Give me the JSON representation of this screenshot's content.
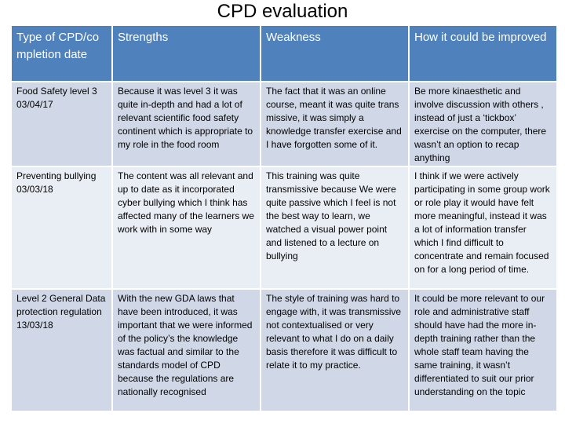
{
  "page_title": "CPD evaluation",
  "table": {
    "headers": [
      "Type of CPD/completion date",
      "Strengths",
      "Weakness",
      "How it could be improved"
    ],
    "rows": [
      [
        "Food Safety level 3 03/04/17",
        "Because it was level 3 it was quite in-depth and had a lot of relevant scientific food safety continent which is appropriate to my role in the food room",
        "The fact that it was an online course, meant it was quite trans missive, it was simply a knowledge transfer exercise and I have forgotten some of it.",
        "Be more kinaesthetic and involve discussion with others , instead of just a ‘tickbox’ exercise on the computer, there wasn’t an option to recap anything"
      ],
      [
        "Preventing bullying 03/03/18",
        "The content was all relevant and up to date as it incorporated cyber bullying which I think has affected many of the learners we work with in some way",
        "This training was quite transmissive because We were quite passive which I feel is not the best way to learn, we watched a visual power point and listened to a lecture on bullying",
        "I think if we were actively participating in some group work or role play it would have felt more meaningful, instead it was a lot of information transfer which I find difficult to concentrate and remain focused on for a long period of time."
      ],
      [
        "Level 2 General Data protection regulation 13/03/18",
        "With the new GDA laws that have been introduced, it was important that we were informed of the policy’s the knowledge was factual and similar to the standards model of CPD because the regulations are nationally recognised",
        "The style of training was hard to engage with, it was transmissive not contextualised or very relevant to what I do on a daily basis therefore it was difficult to relate it to my practice.",
        "It could be more relevant to our role and administrative staff should have had the more in-depth training rather than the whole staff team having the same training, it wasn’t differentiated to suit our prior understanding on the topic"
      ]
    ]
  }
}
